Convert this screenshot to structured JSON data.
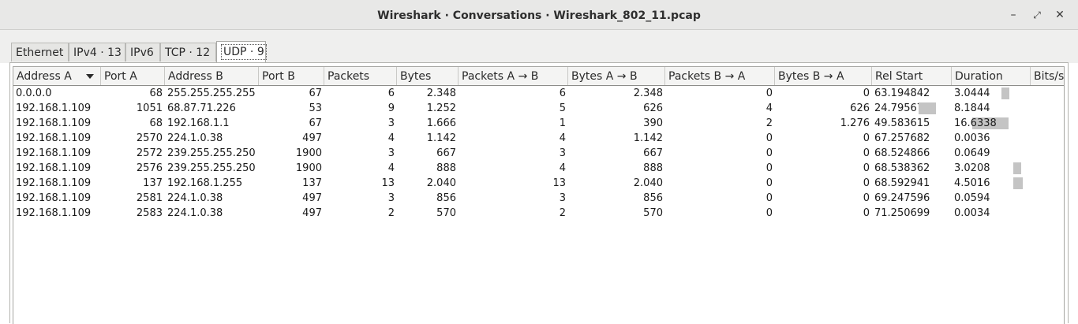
{
  "window": {
    "title": "Wireshark · Conversations · Wireshark_802_11.pcap"
  },
  "tabs": [
    {
      "label": "Ethernet"
    },
    {
      "label": "IPv4 · 13"
    },
    {
      "label": "IPv6"
    },
    {
      "label": "TCP · 12"
    },
    {
      "label": "UDP · 9"
    }
  ],
  "active_tab": "UDP · 9",
  "columns": [
    "Address A",
    "Port A",
    "Address B",
    "Port B",
    "Packets",
    "Bytes",
    "Packets A → B",
    "Bytes A → B",
    "Packets B → A",
    "Bytes B → A",
    "Rel Start",
    "Duration",
    "Bits/s"
  ],
  "rows": [
    {
      "address_a": "0.0.0.0",
      "port_a": "68",
      "address_b": "255.255.255.255",
      "port_b": "67",
      "packets": "6",
      "bytes": "2.348",
      "packets_ab": "6",
      "bytes_ab": "2.348",
      "packets_ba": "0",
      "bytes_ba": "0",
      "rel_start": "63.194842",
      "duration": "3.0444"
    },
    {
      "address_a": "192.168.1.109",
      "port_a": "1051",
      "address_b": "68.87.71.226",
      "port_b": "53",
      "packets": "9",
      "bytes": "1.252",
      "packets_ab": "5",
      "bytes_ab": "626",
      "packets_ba": "4",
      "bytes_ba": "626",
      "rel_start": "24.795673",
      "duration": "8.1844"
    },
    {
      "address_a": "192.168.1.109",
      "port_a": "68",
      "address_b": "192.168.1.1",
      "port_b": "67",
      "packets": "3",
      "bytes": "1.666",
      "packets_ab": "1",
      "bytes_ab": "390",
      "packets_ba": "2",
      "bytes_ba": "1.276",
      "rel_start": "49.583615",
      "duration": "16.6338"
    },
    {
      "address_a": "192.168.1.109",
      "port_a": "2570",
      "address_b": "224.1.0.38",
      "port_b": "497",
      "packets": "4",
      "bytes": "1.142",
      "packets_ab": "4",
      "bytes_ab": "1.142",
      "packets_ba": "0",
      "bytes_ba": "0",
      "rel_start": "67.257682",
      "duration": "0.0036"
    },
    {
      "address_a": "192.168.1.109",
      "port_a": "2572",
      "address_b": "239.255.255.250",
      "port_b": "1900",
      "packets": "3",
      "bytes": "667",
      "packets_ab": "3",
      "bytes_ab": "667",
      "packets_ba": "0",
      "bytes_ba": "0",
      "rel_start": "68.524866",
      "duration": "0.0649"
    },
    {
      "address_a": "192.168.1.109",
      "port_a": "2576",
      "address_b": "239.255.255.250",
      "port_b": "1900",
      "packets": "4",
      "bytes": "888",
      "packets_ab": "4",
      "bytes_ab": "888",
      "packets_ba": "0",
      "bytes_ba": "0",
      "rel_start": "68.538362",
      "duration": "3.0208"
    },
    {
      "address_a": "192.168.1.109",
      "port_a": "137",
      "address_b": "192.168.1.255",
      "port_b": "137",
      "packets": "13",
      "bytes": "2.040",
      "packets_ab": "13",
      "bytes_ab": "2.040",
      "packets_ba": "0",
      "bytes_ba": "0",
      "rel_start": "68.592941",
      "duration": "4.5016"
    },
    {
      "address_a": "192.168.1.109",
      "port_a": "2581",
      "address_b": "224.1.0.38",
      "port_b": "497",
      "packets": "3",
      "bytes": "856",
      "packets_ab": "3",
      "bytes_ab": "856",
      "packets_ba": "0",
      "bytes_ba": "0",
      "rel_start": "69.247596",
      "duration": "0.0594"
    },
    {
      "address_a": "192.168.1.109",
      "port_a": "2583",
      "address_b": "224.1.0.38",
      "port_b": "497",
      "packets": "2",
      "bytes": "570",
      "packets_ab": "2",
      "bytes_ab": "570",
      "packets_ba": "0",
      "bytes_ba": "0",
      "rel_start": "71.250699",
      "duration": "0.0034"
    }
  ],
  "colors": {
    "bar_fill": "#c4c4c4",
    "titlebar": "#e8e8e7"
  }
}
